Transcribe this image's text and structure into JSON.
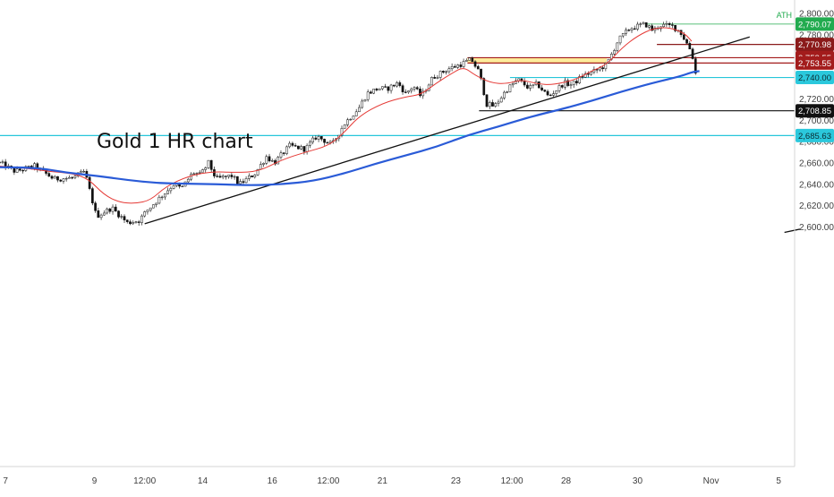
{
  "chart_data": {
    "type": "candlestick",
    "title": "Gold 1 HR chart",
    "ylim": [
      2595,
      2810
    ],
    "y_ticks": [
      "2,800.00",
      "2,780.00",
      "2,760.00",
      "2,740.00",
      "2,720.00",
      "2,700.00",
      "2,680.00",
      "2,660.00",
      "2,640.00",
      "2,620.00",
      "2,600.00"
    ],
    "y_tick_values": [
      2800,
      2780,
      2760,
      2740,
      2720,
      2700,
      2680,
      2660,
      2640,
      2620,
      2600
    ],
    "x_ticks": [
      {
        "label": "7",
        "t": 0.5
      },
      {
        "label": "9",
        "t": 23.5
      },
      {
        "label": "12:00",
        "t": 36.5
      },
      {
        "label": "14",
        "t": 51.5
      },
      {
        "label": "16",
        "t": 69.5
      },
      {
        "label": "12:00",
        "t": 84.0
      },
      {
        "label": "21",
        "t": 98.0
      },
      {
        "label": "23",
        "t": 117.0
      },
      {
        "label": "12:00",
        "t": 131.5
      },
      {
        "label": "28",
        "t": 145.5
      },
      {
        "label": "30",
        "t": 164.0
      },
      {
        "label": "Nov",
        "t": 183.0
      },
      {
        "label": "5",
        "t": 200.5
      }
    ],
    "levels": [
      {
        "label": "ATH",
        "value": 2790.07,
        "text": "2,790.07",
        "color": "#22ab4f",
        "start_t": 166
      },
      {
        "label": "",
        "value": 2770.98,
        "text": "2,770.98",
        "color": "#8b1a1a",
        "start_t": 169
      },
      {
        "label": "",
        "value": 2758.55,
        "text": "2,758.55",
        "color": "#a31c1c",
        "start_t": 120
      },
      {
        "label": "",
        "value": 2753.55,
        "text": "2,753.55",
        "color": "#a31c1c",
        "start_t": 120
      },
      {
        "label": "",
        "value": 2740.0,
        "text": "2,740.00",
        "color": "#26c6da",
        "start_t": 131
      },
      {
        "label": "",
        "value": 2708.85,
        "text": "2,708.85",
        "color": "#111111",
        "start_t": 123
      },
      {
        "label": "",
        "value": 2685.63,
        "text": "2,685.63",
        "color": "#26c6da",
        "start_t": -1
      }
    ],
    "zone": {
      "low": 2753.55,
      "high": 2758.55,
      "start_t": 120,
      "end_t": 156,
      "color": "#fde98a"
    },
    "trendlines": [
      {
        "points": [
          [
            36.5,
            2603
          ],
          [
            193,
            2778
          ]
        ],
        "color": "#111111"
      },
      {
        "points": [
          [
            202,
            2595
          ],
          [
            206,
            2598
          ]
        ],
        "color": "#111111"
      }
    ],
    "ma_slow": {
      "color": "#2a5bd7",
      "points": [
        [
          -1,
          2656
        ],
        [
          8,
          2656
        ],
        [
          16,
          2651
        ],
        [
          24,
          2648
        ],
        [
          32,
          2644
        ],
        [
          40,
          2641
        ],
        [
          48,
          2640.5
        ],
        [
          56,
          2640
        ],
        [
          64,
          2639
        ],
        [
          72,
          2640
        ],
        [
          80,
          2643
        ],
        [
          88,
          2650
        ],
        [
          96,
          2659
        ],
        [
          104,
          2667
        ],
        [
          112,
          2675
        ],
        [
          120,
          2686
        ],
        [
          128,
          2694
        ],
        [
          136,
          2703
        ],
        [
          144,
          2710
        ],
        [
          152,
          2718
        ],
        [
          160,
          2727
        ],
        [
          168,
          2735
        ],
        [
          175,
          2741
        ],
        [
          178,
          2745
        ],
        [
          180,
          2746
        ]
      ]
    },
    "ma_fast": {
      "color": "#e53935",
      "points": [
        [
          -1,
          2657
        ],
        [
          6,
          2655
        ],
        [
          12,
          2652
        ],
        [
          18,
          2650
        ],
        [
          22,
          2645
        ],
        [
          26,
          2630
        ],
        [
          30,
          2623
        ],
        [
          34,
          2622
        ],
        [
          38,
          2625
        ],
        [
          42,
          2638
        ],
        [
          48,
          2648
        ],
        [
          54,
          2652
        ],
        [
          60,
          2651
        ],
        [
          66,
          2652
        ],
        [
          72,
          2663
        ],
        [
          78,
          2670
        ],
        [
          84,
          2676
        ],
        [
          88,
          2688
        ],
        [
          92,
          2704
        ],
        [
          98,
          2716
        ],
        [
          104,
          2722
        ],
        [
          108,
          2724
        ],
        [
          112,
          2735
        ],
        [
          116,
          2744
        ],
        [
          119,
          2750
        ],
        [
          122,
          2742
        ],
        [
          126,
          2735
        ],
        [
          130,
          2734
        ],
        [
          134,
          2738
        ],
        [
          138,
          2734
        ],
        [
          142,
          2733
        ],
        [
          148,
          2738
        ],
        [
          152,
          2746
        ],
        [
          156,
          2752
        ],
        [
          160,
          2768
        ],
        [
          164,
          2779
        ],
        [
          168,
          2786
        ],
        [
          172,
          2787
        ],
        [
          176,
          2782
        ],
        [
          178,
          2774
        ]
      ]
    },
    "candle_path": {
      "step": 1,
      "anchors": [
        [
          -1,
          2660
        ],
        [
          3,
          2652
        ],
        [
          8,
          2657
        ],
        [
          13,
          2645
        ],
        [
          18,
          2646
        ],
        [
          21,
          2652
        ],
        [
          24,
          2610
        ],
        [
          28,
          2618
        ],
        [
          32,
          2604
        ],
        [
          35,
          2606
        ],
        [
          37,
          2615
        ],
        [
          40,
          2626
        ],
        [
          44,
          2640
        ],
        [
          46,
          2636
        ],
        [
          49,
          2651
        ],
        [
          51,
          2649
        ],
        [
          53,
          2660
        ],
        [
          55,
          2645
        ],
        [
          59,
          2648
        ],
        [
          61,
          2640
        ],
        [
          65,
          2650
        ],
        [
          68,
          2666
        ],
        [
          70,
          2660
        ],
        [
          74,
          2676
        ],
        [
          78,
          2673
        ],
        [
          81,
          2685
        ],
        [
          85,
          2677
        ],
        [
          88,
          2696
        ],
        [
          92,
          2712
        ],
        [
          94,
          2725
        ],
        [
          97,
          2730
        ],
        [
          99,
          2729
        ],
        [
          102,
          2735
        ],
        [
          104,
          2725
        ],
        [
          106,
          2732
        ],
        [
          108,
          2722
        ],
        [
          111,
          2740
        ],
        [
          115,
          2748
        ],
        [
          118,
          2752
        ],
        [
          121,
          2757
        ],
        [
          123,
          2745
        ],
        [
          125,
          2715
        ],
        [
          127,
          2713
        ],
        [
          130,
          2728
        ],
        [
          133,
          2738
        ],
        [
          136,
          2730
        ],
        [
          138,
          2734
        ],
        [
          141,
          2722
        ],
        [
          145,
          2735
        ],
        [
          147,
          2733
        ],
        [
          150,
          2742
        ],
        [
          153,
          2746
        ],
        [
          156,
          2752
        ],
        [
          159,
          2775
        ],
        [
          162,
          2786
        ],
        [
          166,
          2790
        ],
        [
          168,
          2784
        ],
        [
          170,
          2789
        ],
        [
          173,
          2788
        ],
        [
          175,
          2783
        ],
        [
          178,
          2764
        ],
        [
          179,
          2744
        ]
      ]
    }
  }
}
